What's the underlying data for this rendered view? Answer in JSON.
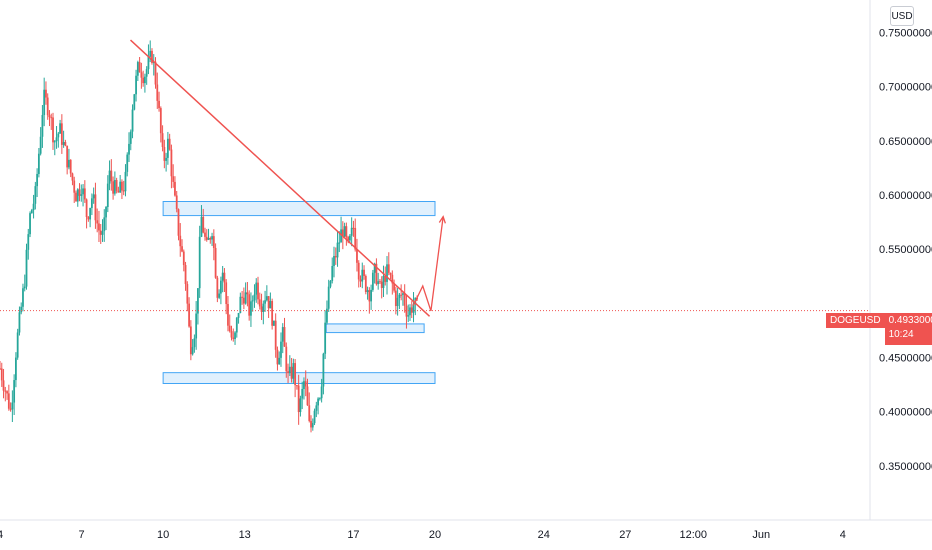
{
  "currency_label": "USD",
  "symbol": "DOGEUSD",
  "last_price": "0.49330000",
  "countdown": "10:24",
  "colors": {
    "up": "#26a69a",
    "down": "#ef5350",
    "trendline": "#ef5350",
    "zone_fill": "#bbdefb",
    "zone_border": "#42a5f5",
    "axis_text": "#131722"
  },
  "chart_data": {
    "type": "candlestick",
    "symbol": "DOGEUSD",
    "y_ticks": [
      "0.75000000",
      "0.70000000",
      "0.65000000",
      "0.60000000",
      "0.55000000",
      "0.45000000",
      "0.40000000",
      "0.35000000"
    ],
    "y_tick_values": [
      0.75,
      0.7,
      0.65,
      0.6,
      0.55,
      0.45,
      0.4,
      0.35
    ],
    "ylim": [
      0.3,
      0.78
    ],
    "x_ticks": [
      "4",
      "7",
      "10",
      "13",
      "17",
      "20",
      "24",
      "27",
      "12:00",
      "Jun",
      "4"
    ],
    "x_tick_days": [
      4,
      7,
      10,
      13,
      17,
      20,
      24,
      27,
      29.5,
      32,
      35
    ],
    "xlim": [
      4,
      36
    ],
    "last_price_value": 0.4933,
    "price_path": [
      [
        4.0,
        0.44
      ],
      [
        4.2,
        0.42
      ],
      [
        4.4,
        0.4
      ],
      [
        4.6,
        0.46
      ],
      [
        4.9,
        0.52
      ],
      [
        5.1,
        0.58
      ],
      [
        5.3,
        0.6
      ],
      [
        5.5,
        0.66
      ],
      [
        5.6,
        0.69
      ],
      [
        5.8,
        0.68
      ],
      [
        6.0,
        0.65
      ],
      [
        6.2,
        0.66
      ],
      [
        6.5,
        0.63
      ],
      [
        6.8,
        0.6
      ],
      [
        7.0,
        0.61
      ],
      [
        7.2,
        0.58
      ],
      [
        7.4,
        0.6
      ],
      [
        7.6,
        0.57
      ],
      [
        7.8,
        0.56
      ],
      [
        8.0,
        0.62
      ],
      [
        8.3,
        0.6
      ],
      [
        8.6,
        0.61
      ],
      [
        8.9,
        0.69
      ],
      [
        9.1,
        0.72
      ],
      [
        9.3,
        0.71
      ],
      [
        9.6,
        0.73
      ],
      [
        9.8,
        0.69
      ],
      [
        10.0,
        0.63
      ],
      [
        10.2,
        0.65
      ],
      [
        10.4,
        0.6
      ],
      [
        10.6,
        0.56
      ],
      [
        10.8,
        0.53
      ],
      [
        11.0,
        0.46
      ],
      [
        11.2,
        0.48
      ],
      [
        11.4,
        0.58
      ],
      [
        11.6,
        0.55
      ],
      [
        11.8,
        0.57
      ],
      [
        12.0,
        0.51
      ],
      [
        12.2,
        0.53
      ],
      [
        12.4,
        0.48
      ],
      [
        12.6,
        0.46
      ],
      [
        12.8,
        0.5
      ],
      [
        13.0,
        0.51
      ],
      [
        13.2,
        0.49
      ],
      [
        13.4,
        0.52
      ],
      [
        13.6,
        0.5
      ],
      [
        13.8,
        0.51
      ],
      [
        14.0,
        0.49
      ],
      [
        14.2,
        0.45
      ],
      [
        14.4,
        0.47
      ],
      [
        14.6,
        0.43
      ],
      [
        14.8,
        0.44
      ],
      [
        15.0,
        0.4
      ],
      [
        15.2,
        0.43
      ],
      [
        15.4,
        0.38
      ],
      [
        15.6,
        0.41
      ],
      [
        15.8,
        0.42
      ],
      [
        16.0,
        0.49
      ],
      [
        16.2,
        0.53
      ],
      [
        16.4,
        0.55
      ],
      [
        16.6,
        0.57
      ],
      [
        16.8,
        0.55
      ],
      [
        17.0,
        0.57
      ],
      [
        17.2,
        0.53
      ],
      [
        17.4,
        0.52
      ],
      [
        17.6,
        0.51
      ],
      [
        17.8,
        0.53
      ],
      [
        18.0,
        0.51
      ],
      [
        18.2,
        0.53
      ],
      [
        18.4,
        0.52
      ],
      [
        18.6,
        0.5
      ],
      [
        18.8,
        0.51
      ],
      [
        19.0,
        0.49
      ],
      [
        19.2,
        0.5
      ],
      [
        19.4,
        0.493
      ]
    ],
    "trendline": [
      [
        8.8,
        0.743
      ],
      [
        19.8,
        0.488
      ]
    ],
    "zones": [
      {
        "x": [
          10.0,
          20.0
        ],
        "y": [
          0.581,
          0.594
        ]
      },
      {
        "x": [
          16.0,
          19.6
        ],
        "y": [
          0.473,
          0.481
        ]
      },
      {
        "x": [
          10.0,
          20.0
        ],
        "y": [
          0.426,
          0.436
        ]
      }
    ],
    "projection": [
      [
        19.2,
        0.498
      ],
      [
        19.55,
        0.516
      ],
      [
        19.85,
        0.493
      ],
      [
        20.3,
        0.58
      ]
    ]
  }
}
